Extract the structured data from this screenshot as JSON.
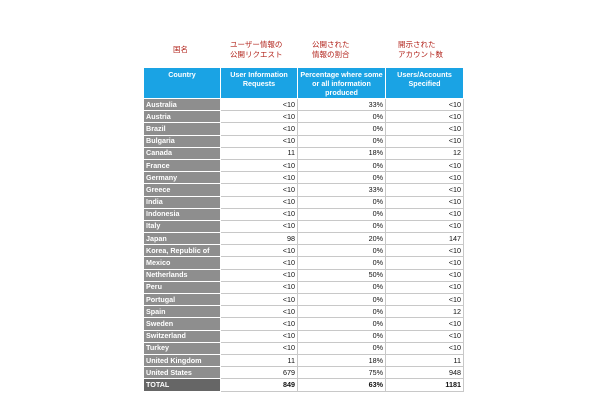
{
  "jp_labels": {
    "country": "国名",
    "requests": "ユーザー情報の\n公開リクエスト",
    "percentage": "公開された\n情報の割合",
    "users": "開示された\nアカウント数"
  },
  "table": {
    "headers": {
      "country": "Country",
      "requests": "User Information Requests",
      "percentage": "Percentage where some or all information produced",
      "users": "Users/Accounts Specified"
    },
    "rows": [
      {
        "country": "Australia",
        "requests": "<10",
        "percentage": "33%",
        "users": "<10"
      },
      {
        "country": "Austria",
        "requests": "<10",
        "percentage": "0%",
        "users": "<10"
      },
      {
        "country": "Brazil",
        "requests": "<10",
        "percentage": "0%",
        "users": "<10"
      },
      {
        "country": "Bulgaria",
        "requests": "<10",
        "percentage": "0%",
        "users": "<10"
      },
      {
        "country": "Canada",
        "requests": "11",
        "percentage": "18%",
        "users": "12"
      },
      {
        "country": "France",
        "requests": "<10",
        "percentage": "0%",
        "users": "<10"
      },
      {
        "country": "Germany",
        "requests": "<10",
        "percentage": "0%",
        "users": "<10"
      },
      {
        "country": "Greece",
        "requests": "<10",
        "percentage": "33%",
        "users": "<10"
      },
      {
        "country": "India",
        "requests": "<10",
        "percentage": "0%",
        "users": "<10"
      },
      {
        "country": "Indonesia",
        "requests": "<10",
        "percentage": "0%",
        "users": "<10"
      },
      {
        "country": "Italy",
        "requests": "<10",
        "percentage": "0%",
        "users": "<10"
      },
      {
        "country": "Japan",
        "requests": "98",
        "percentage": "20%",
        "users": "147"
      },
      {
        "country": "Korea, Republic of",
        "requests": "<10",
        "percentage": "0%",
        "users": "<10"
      },
      {
        "country": "Mexico",
        "requests": "<10",
        "percentage": "0%",
        "users": "<10"
      },
      {
        "country": "Netherlands",
        "requests": "<10",
        "percentage": "50%",
        "users": "<10"
      },
      {
        "country": "Peru",
        "requests": "<10",
        "percentage": "0%",
        "users": "<10"
      },
      {
        "country": "Portugal",
        "requests": "<10",
        "percentage": "0%",
        "users": "<10"
      },
      {
        "country": "Spain",
        "requests": "<10",
        "percentage": "0%",
        "users": "12"
      },
      {
        "country": "Sweden",
        "requests": "<10",
        "percentage": "0%",
        "users": "<10"
      },
      {
        "country": "Switzerland",
        "requests": "<10",
        "percentage": "0%",
        "users": "<10"
      },
      {
        "country": "Turkey",
        "requests": "<10",
        "percentage": "0%",
        "users": "<10"
      },
      {
        "country": "United Kingdom",
        "requests": "11",
        "percentage": "18%",
        "users": "11"
      },
      {
        "country": "United States",
        "requests": "679",
        "percentage": "75%",
        "users": "948"
      }
    ],
    "total": {
      "country": "TOTAL",
      "requests": "849",
      "percentage": "63%",
      "users": "1181"
    }
  },
  "colors": {
    "header_bg": "#1aa3e4",
    "country_bg": "#8e8e8e",
    "total_bg": "#666666",
    "jp_label": "#b3261e"
  }
}
